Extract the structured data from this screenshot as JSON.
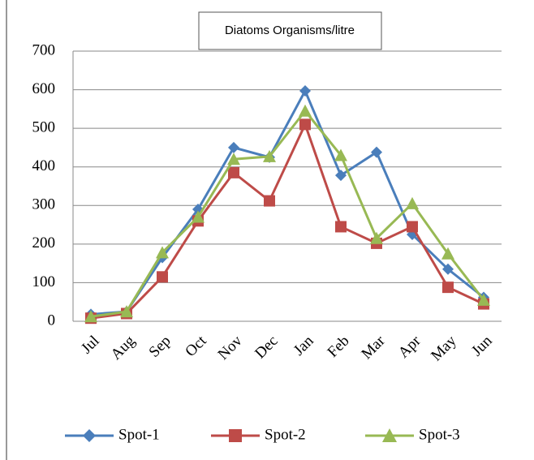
{
  "chart_data": {
    "type": "line",
    "title": "Diatoms Organisms/litre",
    "categories": [
      "Jul",
      "Aug",
      "Sep",
      "Oct",
      "Nov",
      "Dec",
      "Jan",
      "Feb",
      "Mar",
      "Apr",
      "May",
      "Jun"
    ],
    "series": [
      {
        "name": "Spot-1",
        "color": "#4a7ebb",
        "marker": "diamond",
        "values": [
          18,
          25,
          165,
          290,
          450,
          425,
          597,
          378,
          438,
          225,
          135,
          62
        ]
      },
      {
        "name": "Spot-2",
        "color": "#be4b48",
        "marker": "square",
        "values": [
          8,
          20,
          115,
          260,
          385,
          312,
          510,
          245,
          202,
          245,
          88,
          45
        ]
      },
      {
        "name": "Spot-3",
        "color": "#98b954",
        "marker": "triangle",
        "values": [
          12,
          25,
          178,
          270,
          420,
          427,
          545,
          430,
          215,
          305,
          175,
          55
        ]
      }
    ],
    "ylim": [
      0,
      700
    ],
    "yticks": [
      0,
      100,
      200,
      300,
      400,
      500,
      600,
      700
    ],
    "grid": true,
    "legend": "bottom"
  }
}
